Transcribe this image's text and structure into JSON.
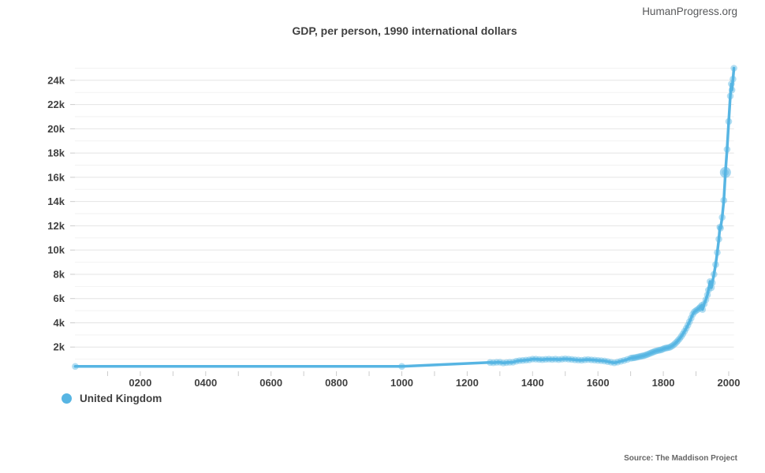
{
  "brand": "HumanProgress.org",
  "title": "GDP, per person, 1990 international dollars",
  "source": "Source: The Maddison Project",
  "legend": {
    "label": "United Kingdom"
  },
  "colors": {
    "line": "#57b5e3",
    "marker": "#57b5e3",
    "grid_major": "#e4e4e4",
    "grid_minor": "#f2f2f2",
    "tick": "#cccccc",
    "text": "#404040",
    "brand_text": "#57585a",
    "source_text": "#666666"
  },
  "chart_data": {
    "type": "line",
    "title": "GDP, per person, 1990 international dollars",
    "series_name": "United Kingdom",
    "legend_position": "bottom-left",
    "grid": true,
    "xlim": [
      0,
      2016
    ],
    "ylim": [
      0,
      25550
    ],
    "x_axis": {
      "tick_labels": [
        "0200",
        "0400",
        "0600",
        "0800",
        "1000",
        "1200",
        "1400",
        "1600",
        "1800",
        "2000"
      ],
      "tick_values": [
        200,
        400,
        600,
        800,
        1000,
        1200,
        1400,
        1600,
        1800,
        2000
      ],
      "minor_tick_step": 100
    },
    "y_axis": {
      "tick_labels": [
        "2k",
        "4k",
        "6k",
        "8k",
        "10k",
        "12k",
        "14k",
        "16k",
        "18k",
        "20k",
        "22k",
        "24k"
      ],
      "tick_values": [
        2000,
        4000,
        6000,
        8000,
        10000,
        12000,
        14000,
        16000,
        18000,
        20000,
        22000,
        24000
      ],
      "minor_step": 1000
    },
    "highlight_point": [
      1990,
      16400
    ],
    "points": [
      [
        1,
        400
      ],
      [
        1000,
        400
      ],
      [
        1270,
        730
      ],
      [
        1280,
        710
      ],
      [
        1290,
        740
      ],
      [
        1300,
        750
      ],
      [
        1310,
        690
      ],
      [
        1320,
        720
      ],
      [
        1330,
        740
      ],
      [
        1340,
        750
      ],
      [
        1350,
        830
      ],
      [
        1360,
        880
      ],
      [
        1370,
        900
      ],
      [
        1380,
        920
      ],
      [
        1390,
        950
      ],
      [
        1400,
        1010
      ],
      [
        1410,
        1000
      ],
      [
        1420,
        980
      ],
      [
        1430,
        960
      ],
      [
        1440,
        990
      ],
      [
        1450,
        1000
      ],
      [
        1460,
        980
      ],
      [
        1470,
        1000
      ],
      [
        1480,
        970
      ],
      [
        1490,
        1000
      ],
      [
        1500,
        1030
      ],
      [
        1510,
        1000
      ],
      [
        1520,
        980
      ],
      [
        1530,
        950
      ],
      [
        1540,
        930
      ],
      [
        1550,
        910
      ],
      [
        1560,
        950
      ],
      [
        1570,
        970
      ],
      [
        1580,
        940
      ],
      [
        1590,
        920
      ],
      [
        1600,
        900
      ],
      [
        1610,
        880
      ],
      [
        1620,
        850
      ],
      [
        1630,
        800
      ],
      [
        1640,
        750
      ],
      [
        1650,
        700
      ],
      [
        1660,
        760
      ],
      [
        1670,
        830
      ],
      [
        1680,
        900
      ],
      [
        1690,
        980
      ],
      [
        1700,
        1080
      ],
      [
        1705,
        1100
      ],
      [
        1710,
        1120
      ],
      [
        1715,
        1140
      ],
      [
        1720,
        1170
      ],
      [
        1725,
        1200
      ],
      [
        1730,
        1230
      ],
      [
        1735,
        1260
      ],
      [
        1740,
        1290
      ],
      [
        1745,
        1330
      ],
      [
        1750,
        1380
      ],
      [
        1755,
        1430
      ],
      [
        1760,
        1490
      ],
      [
        1765,
        1550
      ],
      [
        1770,
        1600
      ],
      [
        1775,
        1650
      ],
      [
        1780,
        1690
      ],
      [
        1785,
        1720
      ],
      [
        1790,
        1750
      ],
      [
        1795,
        1780
      ],
      [
        1800,
        1850
      ],
      [
        1805,
        1900
      ],
      [
        1810,
        1930
      ],
      [
        1815,
        1950
      ],
      [
        1820,
        1990
      ],
      [
        1825,
        2060
      ],
      [
        1830,
        2150
      ],
      [
        1835,
        2260
      ],
      [
        1840,
        2390
      ],
      [
        1845,
        2540
      ],
      [
        1850,
        2700
      ],
      [
        1855,
        2880
      ],
      [
        1860,
        3080
      ],
      [
        1865,
        3300
      ],
      [
        1870,
        3540
      ],
      [
        1875,
        3800
      ],
      [
        1880,
        4080
      ],
      [
        1885,
        4380
      ],
      [
        1890,
        4700
      ],
      [
        1895,
        4900
      ],
      [
        1900,
        5000
      ],
      [
        1905,
        5100
      ],
      [
        1910,
        5200
      ],
      [
        1913,
        5300
      ],
      [
        1918,
        5450
      ],
      [
        1920,
        5100
      ],
      [
        1925,
        5550
      ],
      [
        1930,
        5900
      ],
      [
        1935,
        6300
      ],
      [
        1938,
        6700
      ],
      [
        1943,
        7400
      ],
      [
        1947,
        6900
      ],
      [
        1950,
        7300
      ],
      [
        1955,
        8000
      ],
      [
        1960,
        8800
      ],
      [
        1965,
        9800
      ],
      [
        1970,
        10900
      ],
      [
        1973,
        11900
      ],
      [
        1975,
        11800
      ],
      [
        1980,
        12700
      ],
      [
        1985,
        14100
      ],
      [
        1990,
        16400
      ],
      [
        1995,
        18300
      ],
      [
        2000,
        20600
      ],
      [
        2005,
        22700
      ],
      [
        2008,
        23700
      ],
      [
        2010,
        23200
      ],
      [
        2013,
        24100
      ],
      [
        2016,
        25000
      ]
    ]
  }
}
